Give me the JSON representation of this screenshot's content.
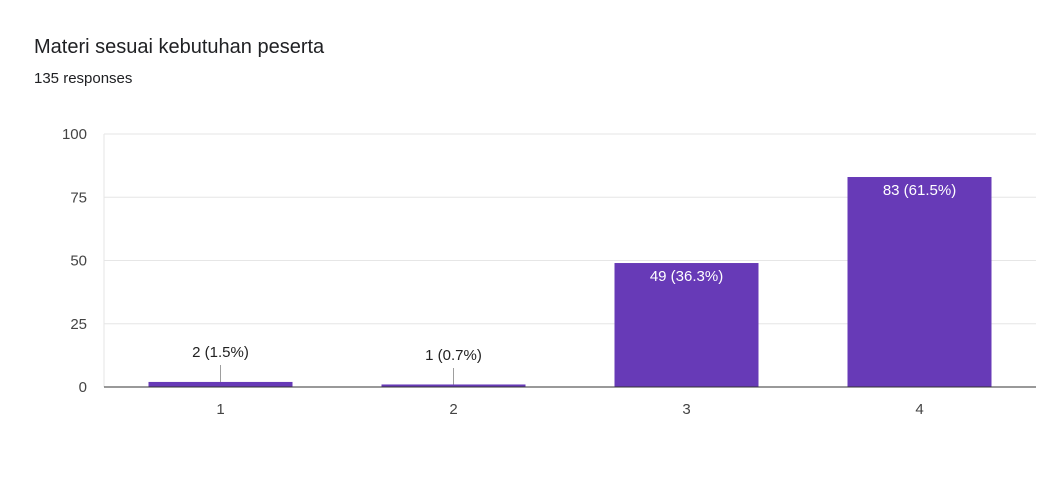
{
  "chart_data": {
    "type": "bar",
    "title": "Materi sesuai kebutuhan peserta",
    "subtitle": "135 responses",
    "categories": [
      "1",
      "2",
      "3",
      "4"
    ],
    "values": [
      2,
      1,
      49,
      83
    ],
    "data_labels": [
      "2 (1.5%)",
      "1 (0.7%)",
      "49 (36.3%)",
      "83 (61.5%)"
    ],
    "ylim": [
      0,
      100
    ],
    "yticks": [
      "0",
      "25",
      "50",
      "75",
      "100"
    ],
    "xlabel": "",
    "ylabel": "",
    "grid": true,
    "bar_color": "#673ab7"
  }
}
